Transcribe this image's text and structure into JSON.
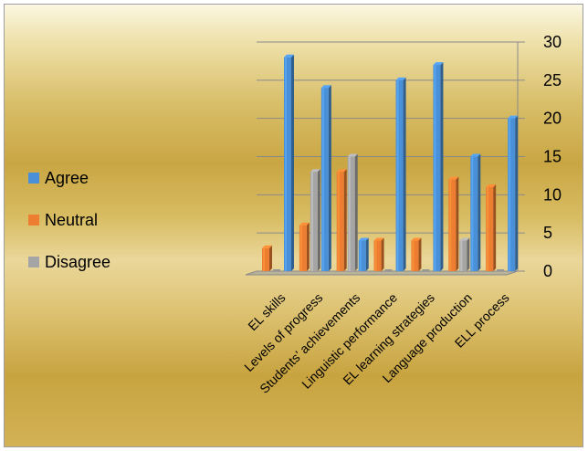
{
  "chart_data": {
    "type": "bar",
    "categories": [
      "EL skills",
      "Levels of progress",
      "Students’ achievements",
      "Linguistic performance",
      "EL learning strategies",
      "Language production",
      "ELL process"
    ],
    "series": [
      {
        "name": "Agree",
        "values": [
          28,
          24,
          4,
          25,
          27,
          15,
          20
        ],
        "color": "#4a90d9"
      },
      {
        "name": "Neutral",
        "values": [
          3,
          6,
          13,
          4,
          4,
          12,
          11
        ],
        "color": "#ed7d31"
      },
      {
        "name": "Disagree",
        "values": [
          0,
          13,
          15,
          0,
          0,
          4,
          0
        ],
        "color": "#a5a5a5"
      }
    ],
    "ylim": [
      0,
      30
    ],
    "yticks": [
      "0",
      "5",
      "10",
      "15",
      "20",
      "25",
      "30"
    ],
    "grid": true,
    "legend": "left",
    "style": "3d-column"
  }
}
